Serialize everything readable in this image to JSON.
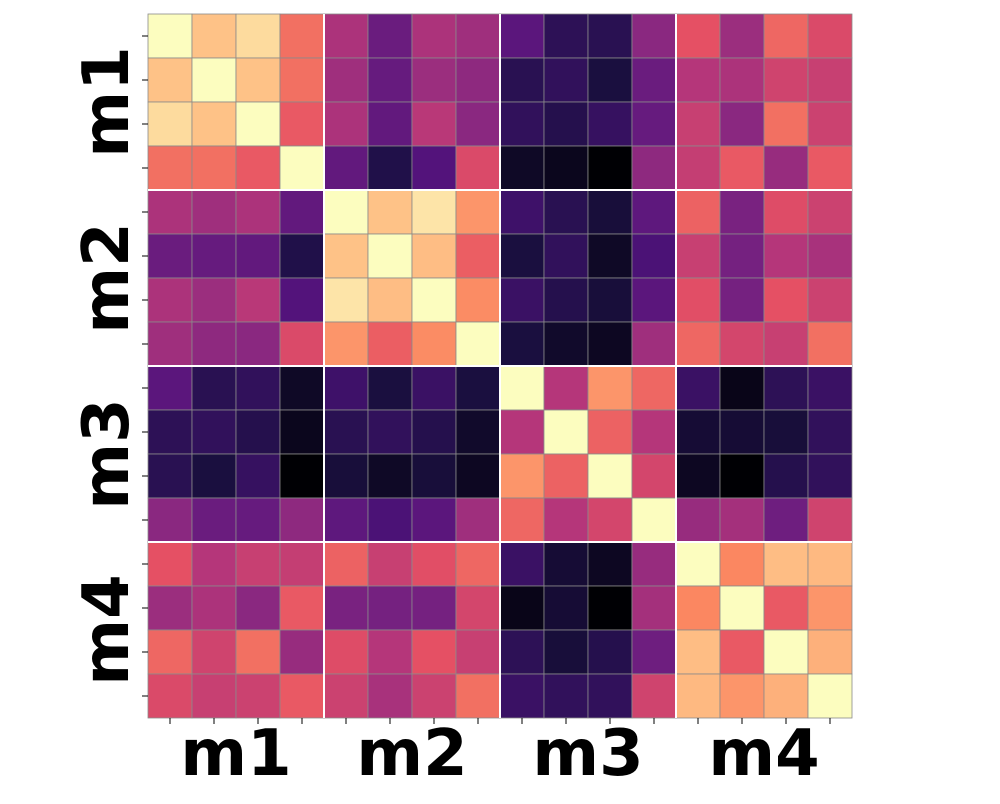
{
  "chart_data": {
    "type": "heatmap",
    "colormap": "magma",
    "vmin": 0.0,
    "vmax": 1.0,
    "grid": true,
    "legend": "none",
    "block_size": 4,
    "block_labels": [
      "m1",
      "m2",
      "m3",
      "m4"
    ],
    "xlabel": "",
    "ylabel": "",
    "title": "",
    "values": [
      [
        1.0,
        0.88,
        0.93,
        0.7,
        0.48,
        0.32,
        0.48,
        0.45,
        0.28,
        0.17,
        0.16,
        0.4,
        0.63,
        0.44,
        0.68,
        0.6
      ],
      [
        0.88,
        1.0,
        0.88,
        0.7,
        0.45,
        0.31,
        0.44,
        0.41,
        0.16,
        0.18,
        0.12,
        0.32,
        0.5,
        0.48,
        0.57,
        0.55
      ],
      [
        0.93,
        0.88,
        1.0,
        0.65,
        0.48,
        0.3,
        0.51,
        0.4,
        0.18,
        0.15,
        0.19,
        0.31,
        0.55,
        0.4,
        0.7,
        0.56
      ],
      [
        0.7,
        0.7,
        0.65,
        1.0,
        0.3,
        0.14,
        0.26,
        0.6,
        0.07,
        0.05,
        0.0,
        0.41,
        0.54,
        0.65,
        0.43,
        0.65
      ],
      [
        0.48,
        0.45,
        0.48,
        0.3,
        1.0,
        0.88,
        0.95,
        0.78,
        0.21,
        0.16,
        0.11,
        0.29,
        0.67,
        0.36,
        0.61,
        0.56
      ],
      [
        0.32,
        0.31,
        0.3,
        0.14,
        0.88,
        1.0,
        0.87,
        0.66,
        0.12,
        0.18,
        0.07,
        0.24,
        0.55,
        0.35,
        0.5,
        0.47
      ],
      [
        0.48,
        0.44,
        0.51,
        0.26,
        0.95,
        0.87,
        1.0,
        0.76,
        0.2,
        0.15,
        0.11,
        0.28,
        0.62,
        0.35,
        0.63,
        0.56
      ],
      [
        0.45,
        0.41,
        0.4,
        0.6,
        0.78,
        0.66,
        0.76,
        1.0,
        0.12,
        0.08,
        0.06,
        0.45,
        0.68,
        0.58,
        0.55,
        0.7
      ],
      [
        0.28,
        0.16,
        0.18,
        0.07,
        0.21,
        0.12,
        0.2,
        0.12,
        1.0,
        0.5,
        0.78,
        0.68,
        0.2,
        0.04,
        0.17,
        0.2
      ],
      [
        0.17,
        0.18,
        0.15,
        0.05,
        0.16,
        0.18,
        0.15,
        0.08,
        0.5,
        1.0,
        0.67,
        0.5,
        0.1,
        0.1,
        0.11,
        0.18
      ],
      [
        0.16,
        0.12,
        0.19,
        0.0,
        0.11,
        0.07,
        0.11,
        0.06,
        0.78,
        0.67,
        1.0,
        0.58,
        0.06,
        0.0,
        0.15,
        0.18
      ],
      [
        0.4,
        0.32,
        0.31,
        0.41,
        0.29,
        0.24,
        0.28,
        0.45,
        0.68,
        0.5,
        0.58,
        1.0,
        0.43,
        0.46,
        0.33,
        0.57
      ],
      [
        0.63,
        0.5,
        0.55,
        0.54,
        0.67,
        0.55,
        0.62,
        0.68,
        0.2,
        0.1,
        0.06,
        0.43,
        1.0,
        0.75,
        0.87,
        0.86
      ],
      [
        0.44,
        0.48,
        0.4,
        0.65,
        0.36,
        0.35,
        0.35,
        0.58,
        0.04,
        0.1,
        0.0,
        0.46,
        0.75,
        1.0,
        0.65,
        0.78
      ],
      [
        0.68,
        0.57,
        0.7,
        0.43,
        0.61,
        0.5,
        0.63,
        0.55,
        0.17,
        0.11,
        0.15,
        0.33,
        0.87,
        0.65,
        1.0,
        0.84
      ],
      [
        0.6,
        0.55,
        0.56,
        0.65,
        0.56,
        0.47,
        0.56,
        0.7,
        0.2,
        0.18,
        0.18,
        0.57,
        0.86,
        0.78,
        0.84,
        1.0
      ]
    ]
  }
}
